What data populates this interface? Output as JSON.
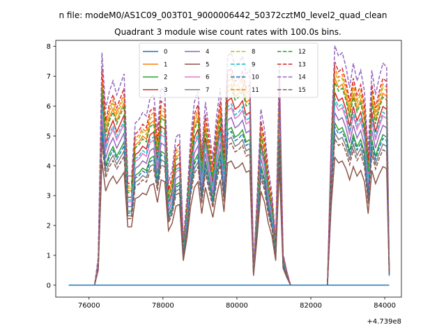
{
  "chart_data": {
    "type": "line",
    "suptitle": "n file: modeM0/AS1C09_003T01_9000006442_50372cztM0_level2_quad_clean",
    "title": "Quadrant 3 module wise count rates with 100.0s bins.",
    "xlabel": "",
    "ylabel": "",
    "x_offset_label": "+4.739e8",
    "xlim": [
      75100,
      84450
    ],
    "ylim": [
      -0.4,
      8.2
    ],
    "xticks": [
      76000,
      78000,
      80000,
      82000,
      84000
    ],
    "xtick_labels": [
      "76000",
      "78000",
      "80000",
      "82000",
      "84000"
    ],
    "yticks": [
      0,
      1,
      2,
      3,
      4,
      5,
      6,
      7,
      8
    ],
    "ytick_labels": [
      "0",
      "1",
      "2",
      "3",
      "4",
      "5",
      "6",
      "7",
      "8"
    ],
    "legend_position": "upper-center",
    "x": [
      75450,
      75550,
      75650,
      75750,
      75850,
      75950,
      76050,
      76150,
      76250,
      76350,
      76450,
      76550,
      76650,
      76750,
      76850,
      76950,
      77050,
      77150,
      77250,
      77350,
      77450,
      77550,
      77650,
      77750,
      77850,
      77950,
      78050,
      78150,
      78250,
      78350,
      78450,
      78550,
      78650,
      78750,
      78850,
      78950,
      79050,
      79150,
      79250,
      79350,
      79450,
      79550,
      79650,
      79750,
      79850,
      79950,
      80050,
      80150,
      80250,
      80350,
      80450,
      80550,
      80650,
      80750,
      80850,
      80950,
      81050,
      81150,
      81250,
      81350,
      81450,
      81550,
      81650,
      81750,
      81850,
      81950,
      82050,
      82150,
      82250,
      82350,
      82450,
      82550,
      82650,
      82750,
      82850,
      82950,
      83050,
      83150,
      83250,
      83350,
      83450,
      83550,
      83650,
      83750,
      83850,
      83950,
      84050,
      84120
    ],
    "reference_series": [
      {
        "name": "12",
        "color": "#2ca02c",
        "dashed": true,
        "values": [
          0,
          0,
          0,
          0,
          0,
          0,
          0,
          0,
          0.8,
          6.6,
          5.0,
          5.5,
          5.8,
          5.4,
          5.7,
          6.0,
          3.1,
          3.1,
          4.6,
          4.7,
          4.9,
          4.8,
          5.3,
          5.4,
          4.4,
          5.6,
          5.5,
          2.9,
          3.3,
          4.2,
          4.3,
          1.3,
          2.5,
          4.2,
          5.2,
          5.5,
          3.8,
          5.2,
          4.4,
          3.6,
          4.8,
          5.6,
          3.9,
          6.5,
          6.6,
          6.2,
          6.3,
          6.5,
          6.0,
          6.1,
          0.5,
          2.6,
          5.0,
          4.4,
          3.3,
          2.6,
          1.3,
          6.3,
          0.9,
          0.4,
          0,
          0,
          0,
          0,
          0,
          0,
          0,
          0,
          0,
          0,
          0,
          4.2,
          6.8,
          6.5,
          6.6,
          6.2,
          5.6,
          6.3,
          5.8,
          6.1,
          5.5,
          3.8,
          6.1,
          5.4,
          5.9,
          6.3,
          6.2,
          0.5
        ]
      }
    ],
    "series": [
      {
        "name": "0",
        "color": "#1f77b4",
        "dashed": false,
        "factor": 0
      },
      {
        "name": "1",
        "color": "#ff7f0e",
        "dashed": false,
        "factor": 1.02
      },
      {
        "name": "2",
        "color": "#2ca02c",
        "dashed": false,
        "factor": 0.8
      },
      {
        "name": "3",
        "color": "#d62728",
        "dashed": false,
        "factor": 0.95
      },
      {
        "name": "4",
        "color": "#9467bd",
        "dashed": false,
        "factor": 0.85
      },
      {
        "name": "5",
        "color": "#8c564b",
        "dashed": false,
        "factor": 0.63
      },
      {
        "name": "6",
        "color": "#e377c2",
        "dashed": false,
        "factor": 0.9
      },
      {
        "name": "7",
        "color": "#7f7f7f",
        "dashed": false,
        "factor": 0.75
      },
      {
        "name": "8",
        "color": "#bcbd22",
        "dashed": true,
        "factor": 1.05
      },
      {
        "name": "9",
        "color": "#17becf",
        "dashed": true,
        "factor": 0.92
      },
      {
        "name": "10",
        "color": "#1f77b4",
        "dashed": true,
        "factor": 0.78
      },
      {
        "name": "11",
        "color": "#ff7f0e",
        "dashed": true,
        "factor": 1.07
      },
      {
        "name": "12",
        "color": "#2ca02c",
        "dashed": true,
        "factor": 1.0
      },
      {
        "name": "13",
        "color": "#d62728",
        "dashed": true,
        "factor": 1.1
      },
      {
        "name": "14",
        "color": "#9467bd",
        "dashed": true,
        "factor": 1.18
      },
      {
        "name": "15",
        "color": "#8c564b",
        "dashed": true,
        "factor": 0.72
      }
    ]
  }
}
